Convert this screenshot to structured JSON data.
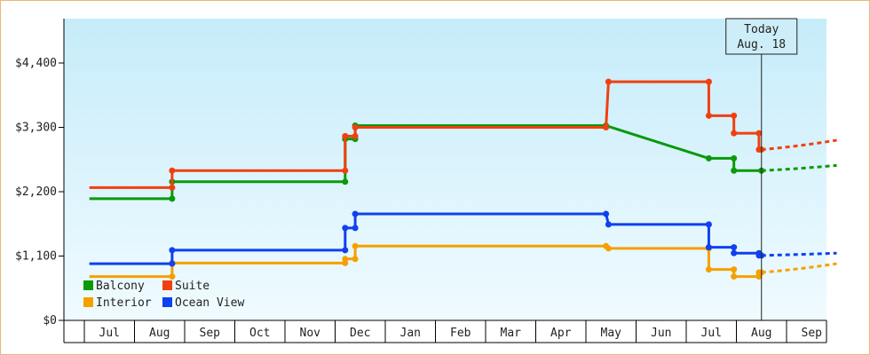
{
  "chart_data": {
    "type": "line",
    "title": "",
    "xlabel": "",
    "ylabel": "",
    "ylim": [
      0,
      4400
    ],
    "y_ticks": [
      0,
      1100,
      2200,
      3300,
      4400
    ],
    "y_tick_labels": [
      "$0",
      "$1,100",
      "$2,200",
      "$3,300",
      "$4,400"
    ],
    "x_ticks": [
      "Jul",
      "Aug",
      "Sep",
      "Oct",
      "Nov",
      "Dec",
      "Jan",
      "Feb",
      "Mar",
      "Apr",
      "May",
      "Jun",
      "Jul",
      "Aug",
      "Sep"
    ],
    "grid": false,
    "legend_position": "bottom-left",
    "today": {
      "line1": "Today",
      "line2": "Aug. 18",
      "x": 13.0
    },
    "series": [
      {
        "name": "Balcony",
        "color": "#0a9a0a",
        "points": [
          [
            -0.4,
            2080
          ],
          [
            1.25,
            2080
          ],
          [
            1.25,
            2370
          ],
          [
            4.7,
            2370
          ],
          [
            4.7,
            3100
          ],
          [
            4.9,
            3100
          ],
          [
            4.9,
            3330
          ],
          [
            9.9,
            3330
          ],
          [
            11.95,
            2770
          ],
          [
            12.45,
            2770
          ],
          [
            12.45,
            2560
          ],
          [
            13.0,
            2560
          ]
        ],
        "forecast": [
          [
            13.0,
            2560
          ],
          [
            14.5,
            2650
          ]
        ]
      },
      {
        "name": "Suite",
        "color": "#f04010",
        "points": [
          [
            -0.4,
            2270
          ],
          [
            1.25,
            2270
          ],
          [
            1.25,
            2560
          ],
          [
            4.7,
            2560
          ],
          [
            4.7,
            3150
          ],
          [
            4.9,
            3150
          ],
          [
            4.9,
            3300
          ],
          [
            9.9,
            3300
          ],
          [
            9.95,
            4080
          ],
          [
            11.95,
            4080
          ],
          [
            11.95,
            3500
          ],
          [
            12.45,
            3500
          ],
          [
            12.45,
            3200
          ],
          [
            12.95,
            3200
          ],
          [
            12.95,
            2920
          ],
          [
            13.0,
            2920
          ]
        ],
        "forecast": [
          [
            13.0,
            2920
          ],
          [
            14.5,
            3080
          ]
        ]
      },
      {
        "name": "Interior",
        "color": "#f5a000",
        "points": [
          [
            -0.4,
            750
          ],
          [
            1.25,
            750
          ],
          [
            1.25,
            980
          ],
          [
            4.7,
            980
          ],
          [
            4.7,
            1050
          ],
          [
            4.9,
            1050
          ],
          [
            4.9,
            1270
          ],
          [
            9.9,
            1270
          ],
          [
            9.95,
            1230
          ],
          [
            11.95,
            1230
          ],
          [
            11.95,
            870
          ],
          [
            12.45,
            870
          ],
          [
            12.45,
            750
          ],
          [
            12.95,
            750
          ],
          [
            12.95,
            820
          ],
          [
            13.0,
            820
          ]
        ],
        "forecast": [
          [
            13.0,
            820
          ],
          [
            14.5,
            970
          ]
        ]
      },
      {
        "name": "Ocean View",
        "color": "#1040f0",
        "points": [
          [
            -0.4,
            970
          ],
          [
            1.25,
            970
          ],
          [
            1.25,
            1200
          ],
          [
            4.7,
            1200
          ],
          [
            4.7,
            1580
          ],
          [
            4.9,
            1580
          ],
          [
            4.9,
            1820
          ],
          [
            9.9,
            1820
          ],
          [
            9.95,
            1640
          ],
          [
            11.95,
            1640
          ],
          [
            11.95,
            1250
          ],
          [
            12.45,
            1250
          ],
          [
            12.45,
            1150
          ],
          [
            12.95,
            1150
          ],
          [
            12.95,
            1110
          ],
          [
            13.0,
            1110
          ]
        ],
        "forecast": [
          [
            13.0,
            1110
          ],
          [
            14.5,
            1150
          ]
        ]
      }
    ],
    "legend": [
      {
        "name": "Balcony",
        "color": "#0a9a0a"
      },
      {
        "name": "Suite",
        "color": "#f04010"
      },
      {
        "name": "Interior",
        "color": "#f5a000"
      },
      {
        "name": "Ocean View",
        "color": "#1040f0"
      }
    ]
  }
}
